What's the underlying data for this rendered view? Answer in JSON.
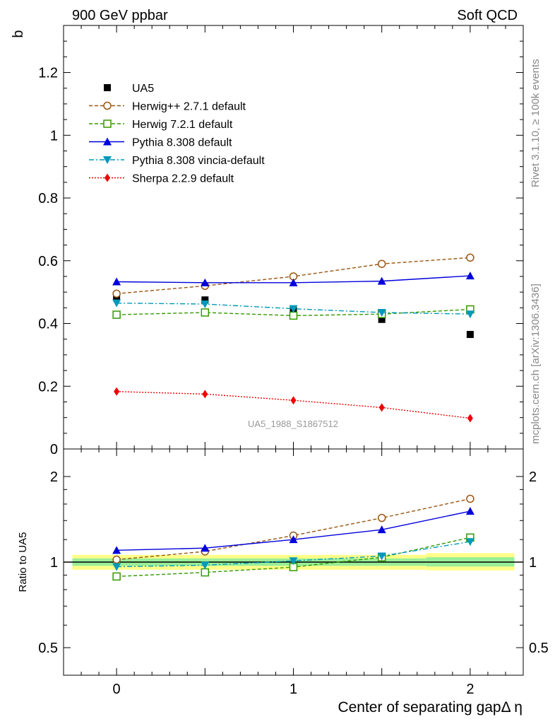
{
  "header": {
    "left": "900 GeV ppbar",
    "right": "Soft QCD"
  },
  "side_text": {
    "rivet": "Rivet 3.1.10, ≥ 100k events",
    "source": "mcplots.cern.ch [arXiv:1306.3436]"
  },
  "chart_data": [
    {
      "type": "line",
      "panel": "main",
      "ylabel": "b",
      "xlim": [
        -0.3,
        2.3
      ],
      "ylim": [
        0,
        1.35
      ],
      "y_ticks": [
        0,
        0.2,
        0.4,
        0.6,
        0.8,
        1,
        1.2
      ],
      "y_tick_labels": [
        "0",
        "0.2",
        "0.4",
        "0.6",
        "0.8",
        "1",
        "1.2"
      ],
      "watermark": "UA5_1988_S1867512",
      "legend_position": "upper-left",
      "x": [
        0,
        0.5,
        1,
        1.5,
        2
      ],
      "series": [
        {
          "name": "UA5",
          "color": "#000000",
          "marker": "square",
          "line": "none",
          "values": [
            0.483,
            0.475,
            0.443,
            0.413,
            0.365
          ]
        },
        {
          "name": "Herwig++ 2.7.1 default",
          "color": "#995511",
          "marker": "open-circle",
          "line": "dashed",
          "values": [
            0.495,
            0.52,
            0.55,
            0.59,
            0.61
          ]
        },
        {
          "name": "Herwig 7.2.1 default",
          "color": "#339900",
          "marker": "open-square",
          "line": "dashed",
          "values": [
            0.428,
            0.435,
            0.425,
            0.43,
            0.445
          ]
        },
        {
          "name": "Pythia 8.308 default",
          "color": "#0000dd",
          "marker": "triangle-up",
          "line": "solid",
          "values": [
            0.533,
            0.53,
            0.53,
            0.535,
            0.552
          ]
        },
        {
          "name": "Pythia 8.308 vincia-default",
          "color": "#0099bb",
          "marker": "triangle-down",
          "line": "dashdot",
          "values": [
            0.465,
            0.462,
            0.447,
            0.435,
            0.43
          ]
        },
        {
          "name": "Sherpa 2.2.9 default",
          "color": "#ee0000",
          "marker": "diamond",
          "line": "dotted",
          "values": [
            0.183,
            0.175,
            0.155,
            0.132,
            0.098
          ]
        }
      ]
    },
    {
      "type": "line",
      "panel": "ratio",
      "ylabel": "Ratio to UA5",
      "xlabel": "Center of separating gapΔ η",
      "scale": "log",
      "xlim": [
        -0.3,
        2.3
      ],
      "ylim": [
        0.4,
        2.5
      ],
      "x_ticks": [
        0,
        1,
        2
      ],
      "x_tick_labels": [
        "0",
        "1",
        "2"
      ],
      "y_ticks": [
        0.5,
        1,
        2
      ],
      "y_tick_labels": [
        "0.5",
        "1",
        "2"
      ],
      "x": [
        0,
        0.5,
        1,
        1.5,
        2
      ],
      "uncertainty_bands": [
        {
          "x_range": [
            -0.25,
            1.75
          ],
          "band_1sigma": [
            0.97,
            1.03
          ],
          "band_2sigma": [
            0.94,
            1.06
          ]
        },
        {
          "x_range": [
            1.75,
            2.25
          ],
          "band_1sigma": [
            0.965,
            1.04
          ],
          "band_2sigma": [
            0.935,
            1.075
          ]
        }
      ],
      "series": [
        {
          "name": "Herwig++ 2.7.1 default",
          "color": "#995511",
          "marker": "open-circle",
          "line": "dashed",
          "values": [
            1.02,
            1.09,
            1.24,
            1.43,
            1.67
          ]
        },
        {
          "name": "Herwig 7.2.1 default",
          "color": "#339900",
          "marker": "open-square",
          "line": "dashed",
          "values": [
            0.89,
            0.92,
            0.96,
            1.04,
            1.22
          ]
        },
        {
          "name": "Pythia 8.308 default",
          "color": "#0000dd",
          "marker": "triangle-up",
          "line": "solid",
          "values": [
            1.1,
            1.12,
            1.2,
            1.3,
            1.51
          ]
        },
        {
          "name": "Pythia 8.308 vincia-default",
          "color": "#0099bb",
          "marker": "triangle-down",
          "line": "dashdot",
          "values": [
            0.963,
            0.975,
            1.01,
            1.05,
            1.18
          ]
        }
      ]
    }
  ]
}
